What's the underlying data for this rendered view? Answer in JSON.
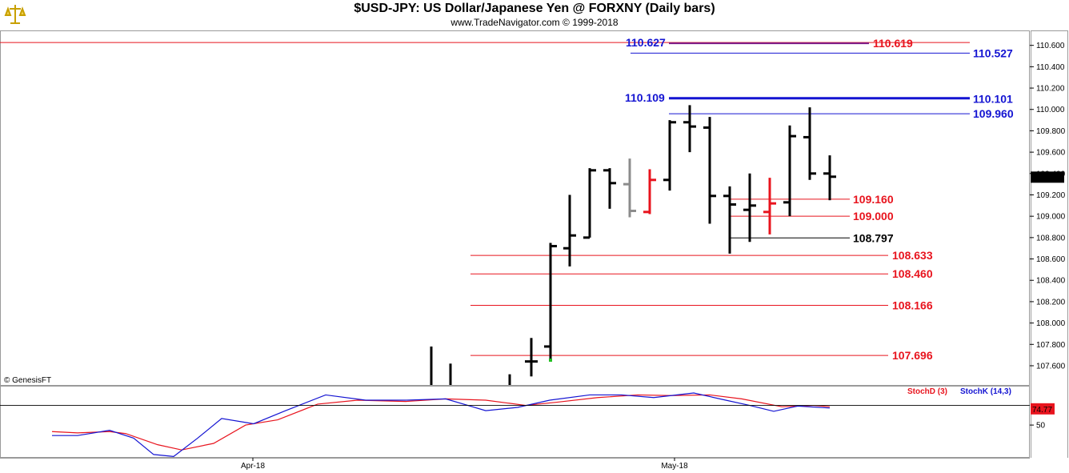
{
  "header": {
    "title": "$USD-JPY:  US Dollar/Japanese Yen @ FORXNY  (Daily bars)",
    "subtitle": "www.TradeNavigator.com © 1999-2018"
  },
  "copyright": "© GenesisFT",
  "colors": {
    "blue_level": "#1414d2",
    "red_level": "#e8141e",
    "black": "#000000",
    "gray_bar": "#8c8c8c",
    "red_bar": "#e8141e",
    "stoch_d": "#e8141e",
    "stoch_k": "#1414d2",
    "last_price_bg": "#000000"
  },
  "chart_data": [
    {
      "type": "ohlc",
      "title": "$USD-JPY:  US Dollar/Japanese Yen @ FORXNY  (Daily bars)",
      "ylim": [
        107.42,
        110.74
      ],
      "y_ticks": [
        "110.600",
        "110.400",
        "110.200",
        "110.000",
        "109.800",
        "109.600",
        "109.400",
        "109.200",
        "109.000",
        "108.800",
        "108.600",
        "108.400",
        "108.200",
        "108.000",
        "107.800",
        "107.600"
      ],
      "x_ticks": [
        "Apr-18",
        "May-18"
      ],
      "last_price": "109.366",
      "bars": [
        {
          "o": null,
          "h": 107.78,
          "l": 107.42,
          "c": null,
          "color": "black"
        },
        {
          "o": null,
          "h": 107.62,
          "l": 107.42,
          "c": null,
          "color": "black"
        },
        {
          "o": null,
          "h": 107.52,
          "l": 107.42,
          "c": null,
          "color": "black"
        },
        {
          "o": 107.64,
          "h": 107.86,
          "l": 107.5,
          "c": 107.64,
          "color": "black"
        },
        {
          "o": 107.78,
          "h": 108.75,
          "l": 107.66,
          "c": 108.72,
          "color": "black"
        },
        {
          "o": 108.7,
          "h": 109.2,
          "l": 108.53,
          "c": 108.82,
          "color": "black"
        },
        {
          "o": 108.8,
          "h": 109.45,
          "l": 108.8,
          "c": 109.43,
          "color": "black"
        },
        {
          "o": 109.43,
          "h": 109.45,
          "l": 109.07,
          "c": 109.31,
          "color": "black"
        },
        {
          "o": 109.3,
          "h": 109.54,
          "l": 108.99,
          "c": 109.05,
          "color": "gray"
        },
        {
          "o": 109.04,
          "h": 109.44,
          "l": 109.02,
          "c": 109.34,
          "color": "red"
        },
        {
          "o": 109.34,
          "h": 109.9,
          "l": 109.24,
          "c": 109.88,
          "color": "black"
        },
        {
          "o": 109.88,
          "h": 110.04,
          "l": 109.6,
          "c": 109.84,
          "color": "black"
        },
        {
          "o": 109.83,
          "h": 109.93,
          "l": 108.93,
          "c": 109.19,
          "color": "black"
        },
        {
          "o": 109.19,
          "h": 109.28,
          "l": 108.65,
          "c": 109.11,
          "color": "black"
        },
        {
          "o": 109.06,
          "h": 109.4,
          "l": 108.76,
          "c": 109.1,
          "color": "black"
        },
        {
          "o": 109.04,
          "h": 109.36,
          "l": 108.83,
          "c": 109.12,
          "color": "red"
        },
        {
          "o": 109.13,
          "h": 109.85,
          "l": 109.0,
          "c": 109.75,
          "color": "black"
        },
        {
          "o": 109.74,
          "h": 110.02,
          "l": 109.34,
          "c": 109.4,
          "color": "black"
        },
        {
          "o": 109.4,
          "h": 109.57,
          "l": 109.15,
          "c": 109.37,
          "color": "black"
        }
      ],
      "levels": [
        {
          "label": "110.627",
          "value": 110.627,
          "color": "blue",
          "side": "left"
        },
        {
          "label": "110.619",
          "value": 110.619,
          "color": "red",
          "side": "mid"
        },
        {
          "label": "110.527",
          "value": 110.527,
          "color": "blue",
          "side": "right"
        },
        {
          "label": "110.109",
          "value": 110.109,
          "color": "blue",
          "side": "left"
        },
        {
          "label": "110.101",
          "value": 110.101,
          "color": "blue",
          "side": "right"
        },
        {
          "label": "109.960",
          "value": 109.96,
          "color": "blue",
          "side": "right"
        },
        {
          "label": "109.160",
          "value": 109.16,
          "color": "red",
          "side": "right"
        },
        {
          "label": "109.000",
          "value": 109.0,
          "color": "red",
          "side": "right"
        },
        {
          "label": "108.797",
          "value": 108.797,
          "color": "black",
          "side": "right"
        },
        {
          "label": "108.633",
          "value": 108.633,
          "color": "red",
          "side": "right"
        },
        {
          "label": "108.460",
          "value": 108.46,
          "color": "red",
          "side": "right"
        },
        {
          "label": "108.166",
          "value": 108.166,
          "color": "red",
          "side": "right"
        },
        {
          "label": "107.696",
          "value": 107.696,
          "color": "red",
          "side": "right"
        }
      ]
    },
    {
      "type": "line",
      "legend": [
        "StochD (3)",
        "StochK (14,3)"
      ],
      "ylim": [
        0,
        110
      ],
      "y_ticks": [
        "50"
      ],
      "last_value": "74.77",
      "series": [
        {
          "name": "StochD (3)",
          "color": "red",
          "values": [
            [
              0.028,
              40
            ],
            [
              0.06,
              38
            ],
            [
              0.1,
              40
            ],
            [
              0.12,
              37
            ],
            [
              0.16,
              20
            ],
            [
              0.19,
              12
            ],
            [
              0.23,
              22
            ],
            [
              0.27,
              50
            ],
            [
              0.31,
              58
            ],
            [
              0.36,
              82
            ],
            [
              0.41,
              88
            ],
            [
              0.47,
              86
            ],
            [
              0.52,
              90
            ],
            [
              0.57,
              88
            ],
            [
              0.62,
              80
            ],
            [
              0.66,
              85
            ],
            [
              0.71,
              92
            ],
            [
              0.76,
              96
            ],
            [
              0.8,
              95
            ],
            [
              0.85,
              96
            ],
            [
              0.89,
              90
            ],
            [
              0.94,
              78
            ],
            [
              0.98,
              80
            ],
            [
              1.0,
              78
            ]
          ]
        },
        {
          "name": "StochK (14,3)",
          "color": "blue",
          "values": [
            [
              0.028,
              34
            ],
            [
              0.06,
              34
            ],
            [
              0.1,
              42
            ],
            [
              0.13,
              30
            ],
            [
              0.155,
              5
            ],
            [
              0.18,
              2
            ],
            [
              0.21,
              30
            ],
            [
              0.24,
              60
            ],
            [
              0.28,
              52
            ],
            [
              0.32,
              72
            ],
            [
              0.37,
              96
            ],
            [
              0.42,
              88
            ],
            [
              0.47,
              88
            ],
            [
              0.52,
              90
            ],
            [
              0.57,
              72
            ],
            [
              0.61,
              77
            ],
            [
              0.65,
              88
            ],
            [
              0.7,
              96
            ],
            [
              0.74,
              96
            ],
            [
              0.78,
              92
            ],
            [
              0.83,
              99
            ],
            [
              0.87,
              88
            ],
            [
              0.9,
              80
            ],
            [
              0.93,
              71
            ],
            [
              0.96,
              79
            ],
            [
              1.0,
              76
            ]
          ]
        }
      ]
    }
  ]
}
